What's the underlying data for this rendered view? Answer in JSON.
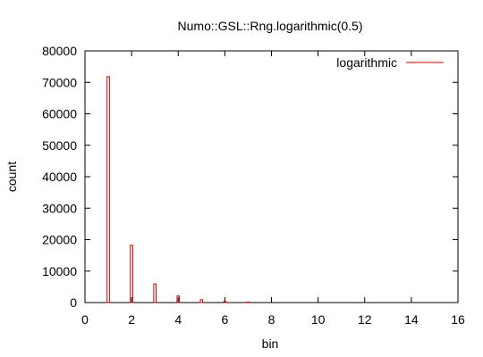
{
  "chart_data": {
    "type": "bar",
    "title": "Numo::GSL::Rng.logarithmic(0.5)",
    "xlabel": "bin",
    "ylabel": "count",
    "xlim": [
      0,
      16
    ],
    "ylim": [
      0,
      80000
    ],
    "xticks": [
      "0",
      "2",
      "4",
      "6",
      "8",
      "10",
      "12",
      "14",
      "16"
    ],
    "yticks": [
      "0",
      "10000",
      "20000",
      "30000",
      "40000",
      "50000",
      "60000",
      "70000",
      "80000"
    ],
    "legend_position": "top-right",
    "grid": false,
    "series": [
      {
        "name": "logarithmic",
        "color": "#cc0000",
        "x": [
          1,
          2,
          3,
          4,
          5,
          6,
          7
        ],
        "values": [
          71800,
          18200,
          5900,
          2100,
          900,
          350,
          150
        ]
      }
    ]
  }
}
